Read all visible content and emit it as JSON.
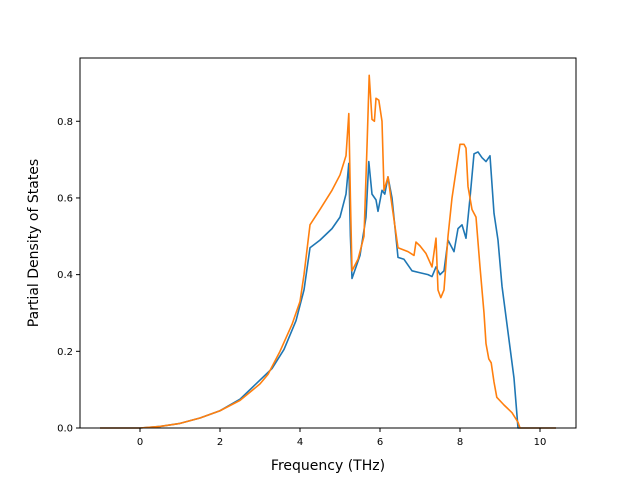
{
  "chart_data": {
    "type": "line",
    "title": "",
    "xlabel": "Frequency (THz)",
    "ylabel": "Partial Density of States",
    "xlim": [
      -1.5,
      10.9
    ],
    "ylim": [
      0.0,
      0.965
    ],
    "xticks": [
      0,
      2,
      4,
      6,
      8,
      10
    ],
    "yticks": [
      0.0,
      0.2,
      0.4,
      0.6,
      0.8
    ],
    "xtick_labels": [
      "0",
      "2",
      "4",
      "6",
      "8",
      "10"
    ],
    "ytick_labels": [
      "0.0",
      "0.2",
      "0.4",
      "0.6",
      "0.8"
    ],
    "grid": false,
    "legend": "none",
    "series": [
      {
        "color": "#1f77b4",
        "points": [
          [
            -1.0,
            0.0
          ],
          [
            0.0,
            0.0
          ],
          [
            0.5,
            0.004
          ],
          [
            1.0,
            0.012
          ],
          [
            1.5,
            0.026
          ],
          [
            2.0,
            0.045
          ],
          [
            2.5,
            0.075
          ],
          [
            3.0,
            0.125
          ],
          [
            3.3,
            0.155
          ],
          [
            3.6,
            0.205
          ],
          [
            3.9,
            0.28
          ],
          [
            4.1,
            0.36
          ],
          [
            4.25,
            0.47
          ],
          [
            4.5,
            0.49
          ],
          [
            4.8,
            0.52
          ],
          [
            5.0,
            0.55
          ],
          [
            5.15,
            0.61
          ],
          [
            5.22,
            0.69
          ],
          [
            5.26,
            0.5
          ],
          [
            5.3,
            0.39
          ],
          [
            5.5,
            0.45
          ],
          [
            5.65,
            0.55
          ],
          [
            5.72,
            0.695
          ],
          [
            5.8,
            0.61
          ],
          [
            5.9,
            0.595
          ],
          [
            5.95,
            0.565
          ],
          [
            6.05,
            0.62
          ],
          [
            6.12,
            0.61
          ],
          [
            6.2,
            0.655
          ],
          [
            6.3,
            0.6
          ],
          [
            6.45,
            0.445
          ],
          [
            6.6,
            0.44
          ],
          [
            6.8,
            0.41
          ],
          [
            7.0,
            0.405
          ],
          [
            7.2,
            0.4
          ],
          [
            7.3,
            0.395
          ],
          [
            7.4,
            0.42
          ],
          [
            7.5,
            0.4
          ],
          [
            7.6,
            0.41
          ],
          [
            7.7,
            0.49
          ],
          [
            7.85,
            0.46
          ],
          [
            7.95,
            0.52
          ],
          [
            8.05,
            0.53
          ],
          [
            8.15,
            0.495
          ],
          [
            8.25,
            0.6
          ],
          [
            8.35,
            0.715
          ],
          [
            8.45,
            0.72
          ],
          [
            8.55,
            0.705
          ],
          [
            8.65,
            0.695
          ],
          [
            8.75,
            0.71
          ],
          [
            8.85,
            0.56
          ],
          [
            8.95,
            0.49
          ],
          [
            9.05,
            0.37
          ],
          [
            9.2,
            0.25
          ],
          [
            9.35,
            0.13
          ],
          [
            9.45,
            0.0
          ],
          [
            10.4,
            0.0
          ]
        ]
      },
      {
        "color": "#ff7f0e",
        "points": [
          [
            -1.0,
            0.0
          ],
          [
            0.0,
            0.0
          ],
          [
            0.5,
            0.004
          ],
          [
            1.0,
            0.012
          ],
          [
            1.5,
            0.026
          ],
          [
            2.0,
            0.045
          ],
          [
            2.5,
            0.072
          ],
          [
            3.0,
            0.115
          ],
          [
            3.2,
            0.14
          ],
          [
            3.5,
            0.2
          ],
          [
            3.8,
            0.27
          ],
          [
            4.0,
            0.33
          ],
          [
            4.1,
            0.4
          ],
          [
            4.25,
            0.53
          ],
          [
            4.5,
            0.57
          ],
          [
            4.8,
            0.62
          ],
          [
            5.0,
            0.66
          ],
          [
            5.15,
            0.71
          ],
          [
            5.22,
            0.82
          ],
          [
            5.26,
            0.6
          ],
          [
            5.3,
            0.41
          ],
          [
            5.45,
            0.44
          ],
          [
            5.6,
            0.5
          ],
          [
            5.68,
            0.75
          ],
          [
            5.73,
            0.92
          ],
          [
            5.8,
            0.805
          ],
          [
            5.86,
            0.8
          ],
          [
            5.9,
            0.86
          ],
          [
            5.97,
            0.855
          ],
          [
            6.05,
            0.8
          ],
          [
            6.1,
            0.62
          ],
          [
            6.2,
            0.655
          ],
          [
            6.3,
            0.58
          ],
          [
            6.45,
            0.47
          ],
          [
            6.7,
            0.46
          ],
          [
            6.85,
            0.45
          ],
          [
            6.9,
            0.485
          ],
          [
            7.0,
            0.475
          ],
          [
            7.15,
            0.455
          ],
          [
            7.3,
            0.42
          ],
          [
            7.4,
            0.495
          ],
          [
            7.45,
            0.36
          ],
          [
            7.52,
            0.34
          ],
          [
            7.6,
            0.36
          ],
          [
            7.7,
            0.5
          ],
          [
            7.8,
            0.6
          ],
          [
            7.9,
            0.67
          ],
          [
            8.0,
            0.74
          ],
          [
            8.1,
            0.74
          ],
          [
            8.15,
            0.73
          ],
          [
            8.2,
            0.63
          ],
          [
            8.3,
            0.57
          ],
          [
            8.4,
            0.55
          ],
          [
            8.5,
            0.42
          ],
          [
            8.6,
            0.3
          ],
          [
            8.65,
            0.22
          ],
          [
            8.72,
            0.18
          ],
          [
            8.78,
            0.17
          ],
          [
            8.85,
            0.12
          ],
          [
            8.92,
            0.08
          ],
          [
            9.1,
            0.06
          ],
          [
            9.3,
            0.04
          ],
          [
            9.45,
            0.015
          ],
          [
            9.5,
            0.0
          ],
          [
            10.4,
            0.0
          ]
        ]
      }
    ]
  }
}
